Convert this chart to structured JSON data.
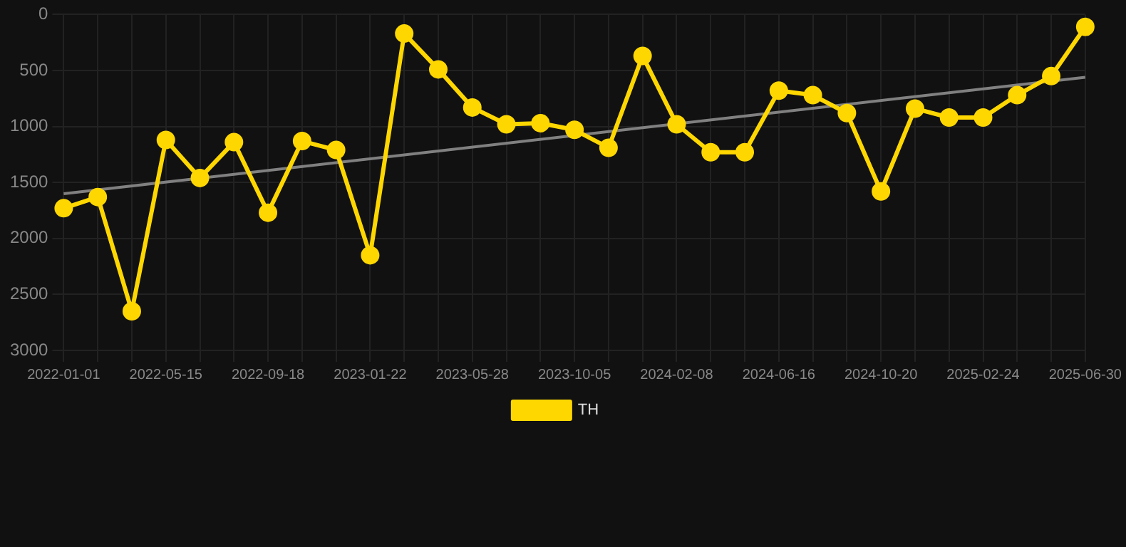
{
  "chart_data": {
    "type": "line",
    "categories": [
      "2022-01-01",
      null,
      null,
      "2022-05-15",
      null,
      null,
      "2022-09-18",
      null,
      null,
      "2023-01-22",
      null,
      null,
      "2023-05-28",
      null,
      null,
      "2023-10-05",
      null,
      null,
      "2024-02-08",
      null,
      null,
      "2024-06-16",
      null,
      null,
      "2024-10-20",
      null,
      null,
      "2025-02-24",
      null,
      null,
      "2025-06-30"
    ],
    "series": [
      {
        "name": "TH",
        "color": "#ffd700",
        "marker": "circle",
        "values": [
          1730,
          1630,
          2650,
          1120,
          1460,
          1140,
          1770,
          1130,
          1210,
          2150,
          170,
          490,
          830,
          980,
          970,
          1030,
          1190,
          370,
          980,
          1230,
          1230,
          680,
          720,
          880,
          1580,
          840,
          920,
          920,
          720,
          550,
          110
        ]
      },
      {
        "type": "line",
        "color": "#808080",
        "marker": "none",
        "values": [
          1600,
          null,
          null,
          null,
          null,
          null,
          null,
          null,
          null,
          null,
          null,
          null,
          null,
          null,
          null,
          null,
          null,
          null,
          null,
          null,
          null,
          null,
          null,
          null,
          null,
          null,
          null,
          null,
          null,
          null,
          560
        ]
      }
    ],
    "ylim": [
      3000,
      0
    ],
    "yticks": [
      0,
      500,
      1000,
      1500,
      2000,
      2500,
      3000
    ],
    "grid": true,
    "legend": "bottom"
  }
}
